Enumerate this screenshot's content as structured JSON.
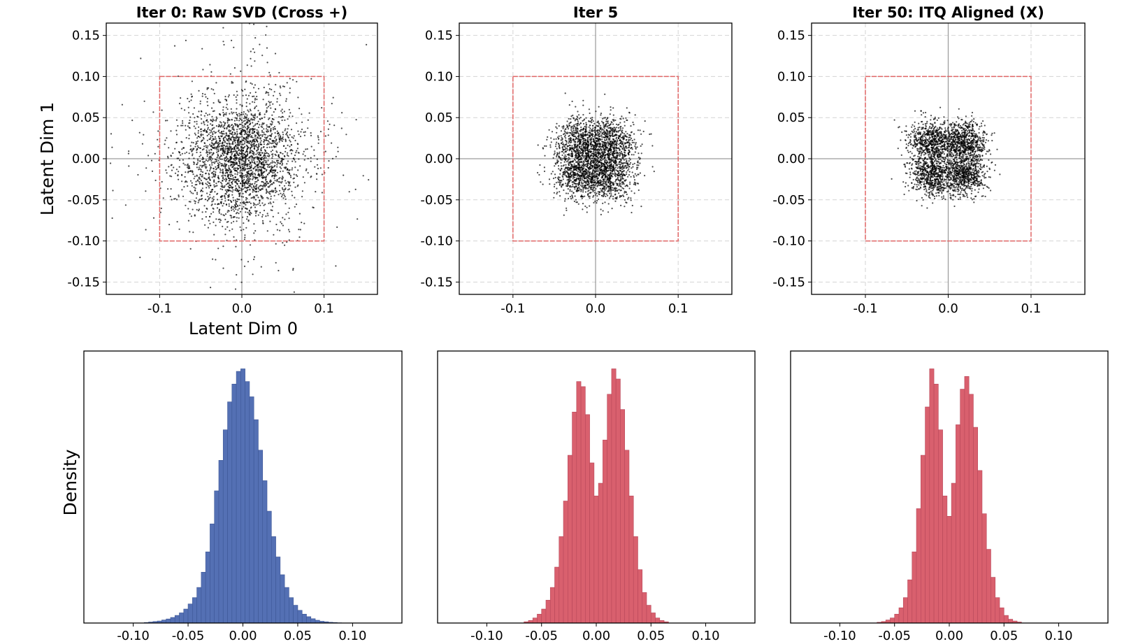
{
  "figure": {
    "ylabel_top": "Latent Dim 1",
    "xlabel_top": "Latent Dim 0",
    "ylabel_bottom": "Density"
  },
  "colors": {
    "points": "#000000",
    "box": "#e06666",
    "raw_hist": "#5470b4",
    "aligned_hist": "#d9606e"
  },
  "chart_data": [
    {
      "type": "scatter",
      "title": "Iter 0: Raw SVD (Cross +)",
      "xlabel": "Latent Dim 0",
      "ylabel": "Latent Dim 1",
      "xlim": [
        -0.165,
        0.165
      ],
      "ylim": [
        -0.165,
        0.165
      ],
      "xticks": [
        -0.1,
        0.0,
        0.1
      ],
      "xtick_labels": [
        "-0.1",
        "0.0",
        "0.1"
      ],
      "yticks": [
        0.15,
        0.1,
        0.05,
        0.0,
        -0.05,
        -0.1,
        -0.15
      ],
      "ytick_labels": [
        "0.15",
        "0.10",
        "0.05",
        "0.00",
        "-0.05",
        "-0.10",
        "-0.15"
      ],
      "grid": true,
      "box": [
        -0.1,
        0.1
      ],
      "distribution": {
        "kind": "gaussian",
        "n": 2800,
        "sd": 0.035
      }
    },
    {
      "type": "scatter",
      "title": "Iter 5",
      "xlabel": "",
      "ylabel": "",
      "xlim": [
        -0.165,
        0.165
      ],
      "ylim": [
        -0.165,
        0.165
      ],
      "xticks": [
        -0.1,
        0.0,
        0.1
      ],
      "xtick_labels": [
        "-0.1",
        "0.0",
        "0.1"
      ],
      "yticks": [
        0.15,
        0.1,
        0.05,
        0.0,
        -0.05,
        -0.1,
        -0.15
      ],
      "ytick_labels": [
        "0.15",
        "0.10",
        "0.05",
        "0.00",
        "-0.05",
        "-0.10",
        "-0.15"
      ],
      "grid": true,
      "box": [
        -0.1,
        0.1
      ],
      "distribution": {
        "kind": "four-cluster",
        "n": 2800,
        "center": 0.018,
        "sd": 0.016
      }
    },
    {
      "type": "scatter",
      "title": "Iter 50: ITQ Aligned (X)",
      "xlabel": "",
      "ylabel": "",
      "xlim": [
        -0.165,
        0.165
      ],
      "ylim": [
        -0.165,
        0.165
      ],
      "xticks": [
        -0.1,
        0.0,
        0.1
      ],
      "xtick_labels": [
        "-0.1",
        "0.0",
        "0.1"
      ],
      "yticks": [
        0.15,
        0.1,
        0.05,
        0.0,
        -0.05,
        -0.1,
        -0.15
      ],
      "ytick_labels": [
        "0.15",
        "0.10",
        "0.05",
        "0.00",
        "-0.05",
        "-0.10",
        "-0.15"
      ],
      "grid": true,
      "box": [
        -0.1,
        0.1
      ],
      "distribution": {
        "kind": "four-cluster",
        "n": 2800,
        "center": 0.02,
        "sd": 0.013
      }
    },
    {
      "type": "bar",
      "title": "",
      "xlabel": "",
      "ylabel": "Density",
      "xlim": [
        -0.145,
        0.145
      ],
      "xticks": [
        -0.1,
        -0.05,
        0.0,
        0.05,
        0.1
      ],
      "xtick_labels": [
        "-0.10",
        "-0.05",
        "0.00",
        "0.05",
        "0.10"
      ],
      "ylim": [
        0,
        1.07
      ],
      "x": [
        -0.088,
        -0.084,
        -0.08,
        -0.076,
        -0.072,
        -0.068,
        -0.064,
        -0.06,
        -0.056,
        -0.052,
        -0.048,
        -0.044,
        -0.04,
        -0.036,
        -0.032,
        -0.028,
        -0.024,
        -0.02,
        -0.016,
        -0.012,
        -0.008,
        -0.004,
        0.0,
        0.004,
        0.008,
        0.012,
        0.016,
        0.02,
        0.024,
        0.028,
        0.032,
        0.036,
        0.04,
        0.044,
        0.048,
        0.052,
        0.056,
        0.06,
        0.064,
        0.068,
        0.072,
        0.076,
        0.08,
        0.084,
        0.088
      ],
      "values": [
        0.002,
        0.004,
        0.006,
        0.008,
        0.012,
        0.016,
        0.022,
        0.03,
        0.04,
        0.055,
        0.075,
        0.1,
        0.14,
        0.2,
        0.28,
        0.39,
        0.52,
        0.64,
        0.76,
        0.87,
        0.94,
        0.99,
        1.0,
        0.95,
        0.89,
        0.8,
        0.68,
        0.56,
        0.44,
        0.34,
        0.26,
        0.19,
        0.14,
        0.1,
        0.07,
        0.05,
        0.035,
        0.025,
        0.017,
        0.011,
        0.007,
        0.005,
        0.003,
        0.002,
        0.001
      ]
    },
    {
      "type": "bar",
      "title": "",
      "xlabel": "",
      "ylabel": "",
      "xlim": [
        -0.145,
        0.145
      ],
      "xticks": [
        -0.1,
        -0.05,
        0.0,
        0.05,
        0.1
      ],
      "xtick_labels": [
        "-0.10",
        "-0.05",
        "0.00",
        "0.05",
        "0.10"
      ],
      "ylim": [
        0,
        1.07
      ],
      "x": [
        -0.064,
        -0.06,
        -0.056,
        -0.052,
        -0.048,
        -0.044,
        -0.04,
        -0.036,
        -0.032,
        -0.028,
        -0.024,
        -0.02,
        -0.016,
        -0.012,
        -0.008,
        -0.004,
        0.0,
        0.004,
        0.008,
        0.012,
        0.016,
        0.02,
        0.024,
        0.028,
        0.032,
        0.036,
        0.04,
        0.044,
        0.048,
        0.052,
        0.056,
        0.06,
        0.064
      ],
      "values": [
        0.005,
        0.01,
        0.02,
        0.035,
        0.055,
        0.09,
        0.14,
        0.22,
        0.34,
        0.48,
        0.66,
        0.83,
        0.95,
        0.93,
        0.82,
        0.63,
        0.5,
        0.55,
        0.72,
        0.9,
        1.0,
        0.96,
        0.84,
        0.68,
        0.5,
        0.34,
        0.21,
        0.12,
        0.07,
        0.04,
        0.02,
        0.01,
        0.005
      ]
    },
    {
      "type": "bar",
      "title": "",
      "xlabel": "",
      "ylabel": "",
      "xlim": [
        -0.145,
        0.145
      ],
      "xticks": [
        -0.1,
        -0.05,
        0.0,
        0.05,
        0.1
      ],
      "xtick_labels": [
        "-0.10",
        "-0.05",
        "0.00",
        "0.05",
        "0.10"
      ],
      "ylim": [
        0,
        1.07
      ],
      "x": [
        -0.064,
        -0.06,
        -0.056,
        -0.052,
        -0.048,
        -0.044,
        -0.04,
        -0.036,
        -0.032,
        -0.028,
        -0.024,
        -0.02,
        -0.016,
        -0.012,
        -0.008,
        -0.004,
        0.0,
        0.004,
        0.008,
        0.012,
        0.016,
        0.02,
        0.024,
        0.028,
        0.032,
        0.036,
        0.04,
        0.044,
        0.048,
        0.052,
        0.056,
        0.06,
        0.064
      ],
      "values": [
        0.003,
        0.006,
        0.012,
        0.02,
        0.035,
        0.06,
        0.1,
        0.17,
        0.28,
        0.45,
        0.66,
        0.85,
        1.0,
        0.94,
        0.76,
        0.5,
        0.42,
        0.55,
        0.78,
        0.92,
        0.97,
        0.9,
        0.77,
        0.6,
        0.43,
        0.29,
        0.18,
        0.1,
        0.06,
        0.03,
        0.015,
        0.008,
        0.004
      ]
    }
  ]
}
